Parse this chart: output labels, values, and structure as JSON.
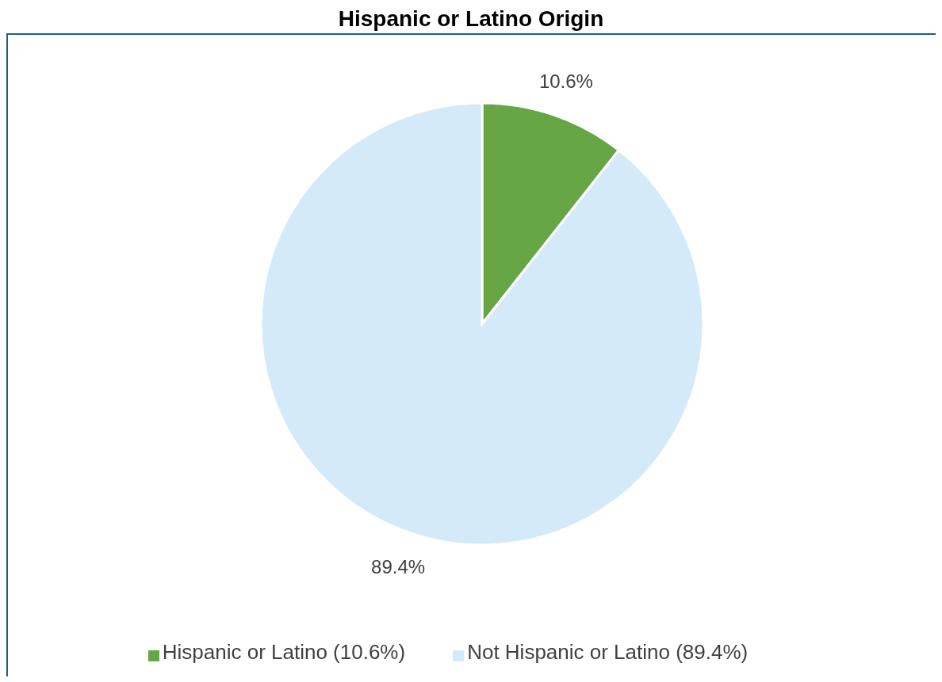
{
  "chart_data": {
    "type": "pie",
    "title": "Hispanic or Latino Origin",
    "categories": [
      "Hispanic or Latino (10.6%)",
      "Not Hispanic or Latino (89.4%)"
    ],
    "values": [
      10.6,
      89.4
    ],
    "colors": [
      "#66a644",
      "#d4eaf8"
    ],
    "value_labels": [
      "10.6%",
      "89.4%"
    ],
    "legend": "bottom"
  }
}
